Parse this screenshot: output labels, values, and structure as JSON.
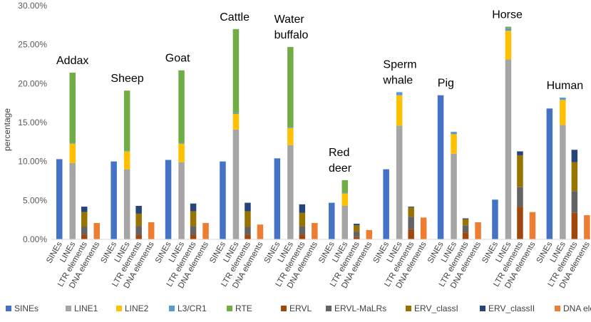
{
  "chart_data": {
    "type": "bar",
    "stacked": true,
    "xlabel": "",
    "ylabel": "percentage",
    "ylim": [
      0,
      30
    ],
    "y_ticks": [
      "0.00%",
      "5.00%",
      "10.00%",
      "15.00%",
      "20.00%",
      "25.00%",
      "30.00%"
    ],
    "y_tick_values": [
      0,
      5,
      10,
      15,
      20,
      25,
      30
    ],
    "grid": false,
    "legend_position": "bottom",
    "bar_categories": [
      "SINEs",
      "LINEs",
      "LTR elements",
      "DNA elements"
    ],
    "components": [
      {
        "key": "sines",
        "name": "SINEs",
        "color": "#4472C4"
      },
      {
        "key": "line1",
        "name": "LINE1",
        "color": "#A5A5A5"
      },
      {
        "key": "line2",
        "name": "LINE2",
        "color": "#FFC000"
      },
      {
        "key": "l3cr1",
        "name": "L3/CR1",
        "color": "#5B9BD5"
      },
      {
        "key": "rte",
        "name": "RTE",
        "color": "#70AD47"
      },
      {
        "key": "ervl",
        "name": "ERVL",
        "color": "#9E480E"
      },
      {
        "key": "ervlmalr",
        "name": "ERVL-MaLRs",
        "color": "#636363"
      },
      {
        "key": "ervclass1",
        "name": "ERV_classI",
        "color": "#997300"
      },
      {
        "key": "ervclass2",
        "name": "ERV_classII",
        "color": "#264478"
      },
      {
        "key": "dna",
        "name": "DNA elements:",
        "color": "#ED7D31"
      }
    ],
    "groups": [
      {
        "species": "Addax",
        "sines": 10.3,
        "lines": {
          "line1": 9.8,
          "line2": 2.5,
          "l3cr1": 0.1,
          "rte": 9.0
        },
        "ltr": {
          "ervl": 0.6,
          "ervlmalr": 1.0,
          "ervclass1": 1.9,
          "ervclass2": 0.7
        },
        "dna": 2.1
      },
      {
        "species": "Sheep",
        "sines": 10.0,
        "lines": {
          "line1": 9.0,
          "line2": 2.3,
          "l3cr1": 0.1,
          "rte": 7.7
        },
        "ltr": {
          "ervl": 0.6,
          "ervlmalr": 1.1,
          "ervclass1": 1.6,
          "ervclass2": 1.0
        },
        "dna": 2.2
      },
      {
        "species": "Goat",
        "sines": 10.2,
        "lines": {
          "line1": 9.9,
          "line2": 2.4,
          "l3cr1": 0.1,
          "rte": 9.3
        },
        "ltr": {
          "ervl": 0.6,
          "ervlmalr": 1.1,
          "ervclass1": 1.9,
          "ervclass2": 1.0
        },
        "dna": 2.1
      },
      {
        "species": "Cattle",
        "sines": 10.0,
        "lines": {
          "line1": 14.1,
          "line2": 2.0,
          "l3cr1": 0.1,
          "rte": 10.8
        },
        "ltr": {
          "ervl": 0.6,
          "ervlmalr": 1.0,
          "ervclass1": 2.0,
          "ervclass2": 1.1
        },
        "dna": 1.9
      },
      {
        "species": "Water buffalo",
        "sines": 10.4,
        "lines": {
          "line1": 12.1,
          "line2": 2.2,
          "l3cr1": 0.1,
          "rte": 10.3
        },
        "ltr": {
          "ervl": 0.6,
          "ervlmalr": 1.1,
          "ervclass1": 1.7,
          "ervclass2": 1.1
        },
        "dna": 2.1
      },
      {
        "species": "Red deer",
        "sines": 4.7,
        "lines": {
          "line1": 4.3,
          "line2": 1.6,
          "l3cr1": 0.1,
          "rte": 1.6
        },
        "ltr": {
          "ervl": 0.3,
          "ervlmalr": 0.7,
          "ervclass1": 0.8,
          "ervclass2": 0.2
        },
        "dna": 1.2
      },
      {
        "species": "Sperm whale",
        "sines": 9.0,
        "lines": {
          "line1": 14.6,
          "line2": 3.9,
          "l3cr1": 0.4,
          "rte": 0.0
        },
        "ltr": {
          "ervl": 1.3,
          "ervlmalr": 1.6,
          "ervclass1": 1.2,
          "ervclass2": 0.1
        },
        "dna": 2.8
      },
      {
        "species": "Pig",
        "sines": 18.5,
        "lines": {
          "line1": 11.0,
          "line2": 2.5,
          "l3cr1": 0.3,
          "rte": 0.0
        },
        "ltr": {
          "ervl": 0.9,
          "ervlmalr": 0.9,
          "ervclass1": 0.8,
          "ervclass2": 0.1
        },
        "dna": 2.2
      },
      {
        "species": "Horse",
        "sines": 5.1,
        "lines": {
          "line1": 23.1,
          "line2": 3.7,
          "l3cr1": 0.3,
          "rte": 0.2
        },
        "ltr": {
          "ervl": 4.2,
          "ervlmalr": 2.5,
          "ervclass1": 4.1,
          "ervclass2": 0.5
        },
        "dna": 3.5
      },
      {
        "species": "Human",
        "sines": 16.8,
        "lines": {
          "line1": 14.7,
          "line2": 3.2,
          "l3cr1": 0.3,
          "rte": 0.0
        },
        "ltr": {
          "ervl": 3.4,
          "ervlmalr": 2.8,
          "ervclass1": 3.7,
          "ervclass2": 1.6
        },
        "dna": 3.1
      }
    ]
  }
}
